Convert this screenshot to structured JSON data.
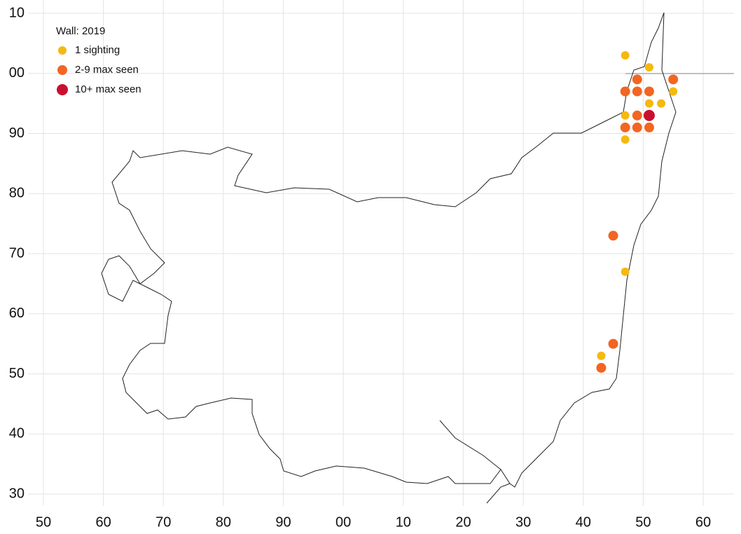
{
  "chart_data": {
    "type": "scatter",
    "legend_title": "Wall:  2019",
    "xlim": [
      50,
      160
    ],
    "ylim": [
      30,
      110
    ],
    "xticks": [
      50,
      60,
      70,
      80,
      90,
      {
        "value": 100,
        "label": "00"
      },
      {
        "value": 110,
        "label": "10"
      },
      {
        "value": 120,
        "label": "20"
      },
      {
        "value": 130,
        "label": "30"
      },
      {
        "value": 140,
        "label": "40"
      },
      {
        "value": 150,
        "label": "50"
      },
      {
        "value": 160,
        "label": "60"
      }
    ],
    "yticks": [
      30,
      40,
      50,
      60,
      70,
      80,
      90,
      {
        "value": 100,
        "label": "00"
      },
      {
        "value": 110,
        "label": "10"
      }
    ],
    "grid": true,
    "legend": "upper left",
    "series": [
      {
        "name": "1 sighting",
        "color": "#f5b90f",
        "x": [
          147,
          151,
          155,
          151,
          153,
          147,
          147,
          147,
          143
        ],
        "y": [
          103,
          101,
          97,
          95,
          95,
          93,
          89,
          67,
          53
        ]
      },
      {
        "name": "2-9 max seen",
        "color": "#f26522",
        "x": [
          149,
          155,
          147,
          149,
          151,
          149,
          147,
          149,
          151,
          145,
          145,
          143
        ],
        "y": [
          99,
          99,
          97,
          97,
          97,
          93,
          91,
          91,
          91,
          73,
          55,
          51
        ]
      },
      {
        "name": "10+ max seen",
        "color": "#c8102e",
        "x": [
          151
        ],
        "y": [
          93
        ]
      }
    ]
  }
}
